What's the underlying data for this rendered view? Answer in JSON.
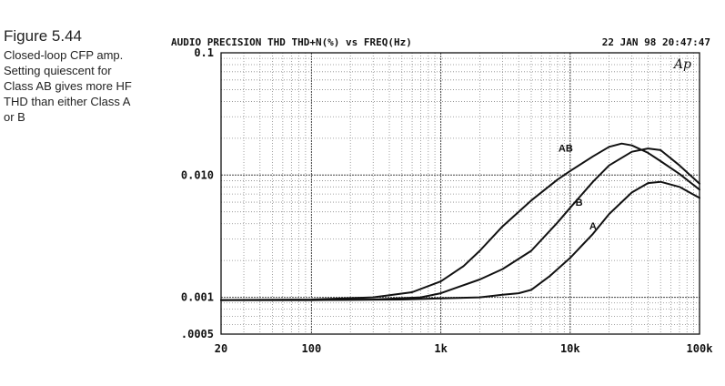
{
  "caption": {
    "figure_number": "Figure 5.44",
    "text": "Closed-loop CFP amp. Setting quiescent for Class AB gives more HF THD than either Class A or B"
  },
  "chart_data": {
    "type": "line",
    "title": "AUDIO PRECISION THD THD+N(%) vs FREQ(Hz)",
    "timestamp": "22 JAN 98 20:47:47",
    "logo": "Ap",
    "x_scale": "log",
    "y_scale": "log",
    "xlim": [
      20,
      100000
    ],
    "ylim": [
      0.0005,
      0.1
    ],
    "grid": true,
    "x_ticks": [
      {
        "value": 20,
        "label": "20"
      },
      {
        "value": 100,
        "label": "100"
      },
      {
        "value": 1000,
        "label": "1k"
      },
      {
        "value": 10000,
        "label": "10k"
      },
      {
        "value": 100000,
        "label": "100k"
      }
    ],
    "y_ticks": [
      {
        "value": 0.1,
        "label": "0.1"
      },
      {
        "value": 0.01,
        "label": "0.010"
      },
      {
        "value": 0.001,
        "label": "0.001"
      },
      {
        "value": 0.0005,
        "label": ".0005"
      }
    ],
    "series": [
      {
        "name": "AB",
        "label_at": {
          "x": 10500,
          "y": 0.0155
        },
        "x": [
          20,
          100,
          300,
          600,
          1000,
          1500,
          2000,
          3000,
          5000,
          8000,
          10000,
          15000,
          20000,
          25000,
          30000,
          40000,
          50000,
          70000,
          100000
        ],
        "y": [
          0.00095,
          0.00096,
          0.001,
          0.0011,
          0.00135,
          0.0018,
          0.0024,
          0.0038,
          0.0062,
          0.0092,
          0.0108,
          0.0142,
          0.017,
          0.0181,
          0.0175,
          0.0152,
          0.013,
          0.0102,
          0.0076
        ]
      },
      {
        "name": "B",
        "label_at": {
          "x": 12500,
          "y": 0.0056
        },
        "x": [
          20,
          100,
          300,
          700,
          1000,
          2000,
          3000,
          5000,
          8000,
          10000,
          15000,
          20000,
          30000,
          40000,
          50000,
          70000,
          100000
        ],
        "y": [
          0.00095,
          0.00095,
          0.00096,
          0.001,
          0.00108,
          0.0014,
          0.0017,
          0.0024,
          0.0041,
          0.0054,
          0.0088,
          0.012,
          0.0155,
          0.0165,
          0.016,
          0.012,
          0.0085
        ]
      },
      {
        "name": "A",
        "label_at": {
          "x": 16000,
          "y": 0.0036
        },
        "x": [
          20,
          100,
          500,
          1000,
          2000,
          3000,
          4000,
          5000,
          7000,
          10000,
          15000,
          20000,
          30000,
          40000,
          50000,
          70000,
          100000
        ],
        "y": [
          0.00095,
          0.00095,
          0.00096,
          0.00098,
          0.001,
          0.00105,
          0.00108,
          0.00115,
          0.0015,
          0.0021,
          0.0033,
          0.0048,
          0.0072,
          0.0086,
          0.0088,
          0.008,
          0.0065
        ]
      }
    ]
  }
}
